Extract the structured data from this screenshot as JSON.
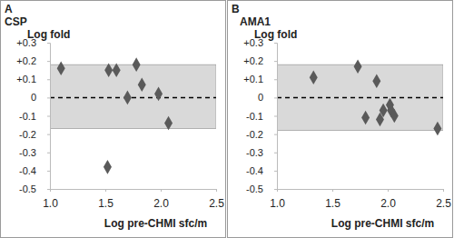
{
  "chart_data": [
    {
      "type": "scatter",
      "panel": "A",
      "title": "CSP",
      "x_label": "Log pre-CHMI sfc/m",
      "y_label": "Log fold",
      "x": [
        1.1,
        1.53,
        1.6,
        1.52,
        1.7,
        1.78,
        1.83,
        1.98,
        2.07
      ],
      "values": [
        0.16,
        0.15,
        0.15,
        -0.38,
        0.0,
        0.18,
        0.07,
        0.02,
        -0.14
      ],
      "color": "#5a5a5a",
      "marker": "diamond",
      "band": [
        -0.17,
        0.18
      ],
      "reference_line": 0,
      "xlim": [
        1.0,
        2.5
      ],
      "xticks": [
        {
          "value": 1.0,
          "label": "1.0"
        },
        1.5,
        {
          "value": 2.0,
          "label": "2.0"
        },
        2.5
      ],
      "ylim": [
        -0.5,
        0.3
      ],
      "yticks": [
        -0.5,
        -0.4,
        -0.3,
        -0.2,
        -0.1,
        0,
        {
          "value": 0.1,
          "label": "+0.1"
        },
        {
          "value": 0.2,
          "label": "+0.2"
        },
        {
          "value": 0.3,
          "label": "+0.3"
        }
      ]
    },
    {
      "type": "scatter",
      "panel": "B",
      "title": "AMA1",
      "x_label": "Log pre-CHMI sfc/m",
      "y_label": "Log fold",
      "x": [
        1.33,
        1.73,
        1.8,
        1.9,
        1.93,
        1.96,
        2.02,
        2.03,
        2.06,
        2.45
      ],
      "values": [
        0.11,
        0.17,
        -0.11,
        0.09,
        -0.12,
        -0.07,
        -0.04,
        -0.07,
        -0.1,
        -0.17
      ],
      "color": "#5a5a5a",
      "marker": "diamond",
      "band": [
        -0.18,
        0.18
      ],
      "reference_line": 0,
      "xlim": [
        1.0,
        2.5
      ],
      "xticks": [
        {
          "value": 1.0,
          "label": "1.0"
        },
        1.5,
        {
          "value": 2.0,
          "label": "2.0"
        },
        2.5
      ],
      "ylim": [
        -0.5,
        0.3
      ],
      "yticks": [
        -0.5,
        -0.4,
        -0.3,
        -0.2,
        -0.1,
        0,
        {
          "value": 0.1,
          "label": "+0.1"
        },
        {
          "value": 0.2,
          "label": "+0.2"
        },
        {
          "value": 0.3,
          "label": "+0.3"
        }
      ]
    }
  ]
}
